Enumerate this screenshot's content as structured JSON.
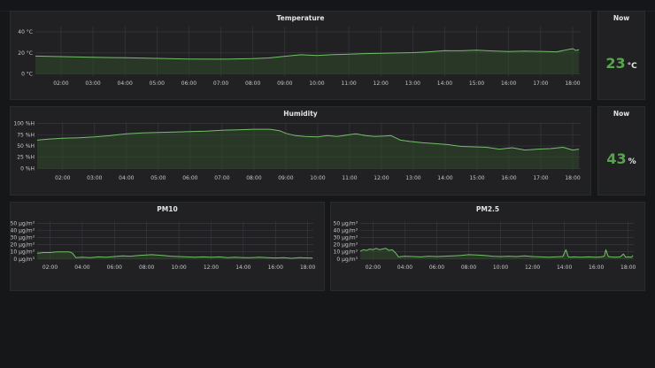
{
  "panels": {
    "temperature": {
      "title": "Temperature"
    },
    "temperature_now": {
      "title": "Now",
      "value": "23",
      "unit": "°C"
    },
    "humidity": {
      "title": "Humidity"
    },
    "humidity_now": {
      "title": "Now",
      "value": "43",
      "unit": "%"
    },
    "pm10": {
      "title": "PM10"
    },
    "pm25": {
      "title": "PM2.5"
    }
  },
  "colors": {
    "series": "#73bf69",
    "fill": "#314a2a",
    "grid": "#3b3c40",
    "tick": "#c7c7c9"
  },
  "chart_data": [
    {
      "id": "temperature",
      "type": "area",
      "title": "Temperature",
      "xlim": [
        1.2,
        18.25
      ],
      "ylim": [
        -2,
        45
      ],
      "xticks": [
        2,
        3,
        4,
        5,
        6,
        7,
        8,
        9,
        10,
        11,
        12,
        13,
        14,
        15,
        16,
        17,
        18
      ],
      "xtick_labels": [
        "02:00",
        "03:00",
        "04:00",
        "05:00",
        "06:00",
        "07:00",
        "08:00",
        "09:00",
        "10:00",
        "11:00",
        "12:00",
        "13:00",
        "14:00",
        "15:00",
        "16:00",
        "17:00",
        "18:00"
      ],
      "yticks": [
        0,
        20,
        40
      ],
      "ytick_labels": [
        "0 °C",
        "20 °C",
        "40 °C"
      ],
      "series": [
        {
          "x": [
            1.2,
            2,
            3,
            4,
            5,
            6,
            7,
            8,
            8.5,
            9,
            9.5,
            10,
            10.5,
            11,
            11.5,
            12,
            12.5,
            13,
            13.5,
            14,
            14.5,
            15,
            15.5,
            16,
            16.5,
            17,
            17.5,
            18,
            18.1,
            18.2
          ],
          "values": [
            17,
            16.5,
            15.8,
            15.4,
            14.8,
            14.2,
            14.0,
            14.5,
            15.2,
            16.8,
            18.2,
            17.5,
            18.3,
            18.8,
            19.3,
            19.6,
            19.9,
            20.2,
            21.0,
            22.1,
            22.0,
            22.5,
            21.8,
            21.3,
            21.7,
            21.4,
            21.0,
            24.0,
            22.3,
            23.0
          ]
        }
      ]
    },
    {
      "id": "humidity",
      "type": "area",
      "title": "Humidity",
      "xlim": [
        1.2,
        18.25
      ],
      "ylim": [
        -5,
        103
      ],
      "xticks": [
        2,
        3,
        4,
        5,
        6,
        7,
        8,
        9,
        10,
        11,
        12,
        13,
        14,
        15,
        16,
        17,
        18
      ],
      "xtick_labels": [
        "02:00",
        "03:00",
        "04:00",
        "05:00",
        "06:00",
        "07:00",
        "08:00",
        "09:00",
        "10:00",
        "11:00",
        "12:00",
        "13:00",
        "14:00",
        "15:00",
        "16:00",
        "17:00",
        "18:00"
      ],
      "yticks": [
        0,
        25,
        50,
        75,
        100
      ],
      "ytick_labels": [
        "0 %H",
        "25 %H",
        "50 %H",
        "75 %H",
        "100 %H"
      ],
      "series": [
        {
          "x": [
            1.2,
            1.5,
            2,
            2.5,
            3,
            3.5,
            4,
            4.5,
            5,
            5.5,
            6,
            6.5,
            7,
            7.5,
            8,
            8.5,
            8.8,
            9,
            9.3,
            9.6,
            10,
            10.3,
            10.6,
            10.9,
            11.2,
            11.5,
            11.8,
            12.1,
            12.3,
            12.6,
            12.9,
            13.3,
            13.7,
            14.1,
            14.5,
            14.9,
            15.3,
            15.7,
            16.1,
            16.5,
            16.9,
            17.3,
            17.7,
            18,
            18.2
          ],
          "values": [
            63,
            65,
            67,
            68,
            70,
            73,
            77,
            79,
            80,
            81,
            82,
            83,
            85,
            86,
            87,
            87,
            84,
            78,
            73,
            71,
            70,
            73,
            71,
            74,
            77,
            73,
            71,
            72,
            73,
            63,
            60,
            57,
            55,
            53,
            49,
            48,
            47,
            43,
            46,
            41,
            43,
            44,
            47,
            41,
            43
          ]
        }
      ]
    },
    {
      "id": "pm10",
      "type": "line",
      "title": "PM10",
      "xlim": [
        1.2,
        18.35
      ],
      "ylim": [
        -1.5,
        53
      ],
      "xticks": [
        2,
        4,
        6,
        8,
        10,
        12,
        14,
        16,
        18
      ],
      "xtick_labels": [
        "02:00",
        "04:00",
        "06:00",
        "08:00",
        "10:00",
        "12:00",
        "14:00",
        "16:00",
        "18:00"
      ],
      "yticks": [
        0,
        10,
        20,
        30,
        40,
        50
      ],
      "ytick_labels": [
        "0 µg/m³",
        "10 µg/m³",
        "20 µg/m³",
        "30 µg/m³",
        "40 µg/m³",
        "50 µg/m³"
      ],
      "series": [
        {
          "x": [
            1.2,
            1.6,
            2,
            2.4,
            2.8,
            3.2,
            3.4,
            3.6,
            4,
            4.5,
            5,
            5.5,
            6,
            6.5,
            7,
            7.5,
            8,
            8.3,
            8.6,
            9,
            9.5,
            10,
            10.5,
            11,
            11.5,
            12,
            12.5,
            13,
            13.5,
            14,
            14.5,
            15,
            15.5,
            16,
            16.5,
            17,
            17.5,
            18,
            18.3
          ],
          "values": [
            8,
            9,
            9,
            10,
            10,
            10,
            8,
            2,
            2.5,
            2,
            3,
            2.5,
            3.5,
            4.5,
            4,
            5,
            5.5,
            6,
            5.5,
            5,
            4,
            3.5,
            3,
            2.5,
            3,
            2.5,
            3,
            2,
            2.5,
            2,
            2,
            2.5,
            2,
            1.5,
            2,
            1,
            2,
            1.5,
            1.5
          ]
        }
      ]
    },
    {
      "id": "pm25",
      "type": "line",
      "title": "PM2.5",
      "xlim": [
        1.2,
        18.35
      ],
      "ylim": [
        -1.5,
        53
      ],
      "xticks": [
        2,
        4,
        6,
        8,
        10,
        12,
        14,
        16,
        18
      ],
      "xtick_labels": [
        "02:00",
        "04:00",
        "06:00",
        "08:00",
        "10:00",
        "12:00",
        "14:00",
        "16:00",
        "18:00"
      ],
      "yticks": [
        0,
        10,
        20,
        30,
        40,
        50
      ],
      "ytick_labels": [
        "0 µg/m³",
        "10 µg/m³",
        "20 µg/m³",
        "30 µg/m³",
        "40 µg/m³",
        "50 µg/m³"
      ],
      "series": [
        {
          "x": [
            1.2,
            1.4,
            1.6,
            1.8,
            2,
            2.2,
            2.4,
            2.6,
            2.8,
            3,
            3.2,
            3.4,
            3.6,
            4,
            4.5,
            5,
            5.5,
            6,
            6.5,
            7,
            7.5,
            8,
            8.5,
            9,
            9.5,
            10,
            10.5,
            11,
            11.5,
            12,
            12.5,
            13,
            13.5,
            13.9,
            14.1,
            14.25,
            14.4,
            14.6,
            15,
            15.5,
            16,
            16.3,
            16.5,
            16.6,
            16.75,
            16.9,
            17.2,
            17.5,
            17.7,
            17.85,
            18,
            18.2,
            18.3
          ],
          "values": [
            11,
            13,
            12,
            14,
            13,
            15,
            13,
            14,
            15,
            12,
            13,
            9,
            3,
            4,
            3.5,
            3,
            4,
            3.5,
            4,
            4.5,
            5,
            6,
            5.5,
            5,
            4,
            3.5,
            4,
            3.5,
            4.5,
            3.5,
            3,
            2.5,
            3,
            3.5,
            13,
            3,
            2.5,
            3,
            2.5,
            3,
            2.5,
            3,
            4,
            13,
            3.5,
            3,
            2.5,
            3,
            7,
            2.5,
            3,
            2.5,
            5
          ]
        }
      ]
    }
  ]
}
